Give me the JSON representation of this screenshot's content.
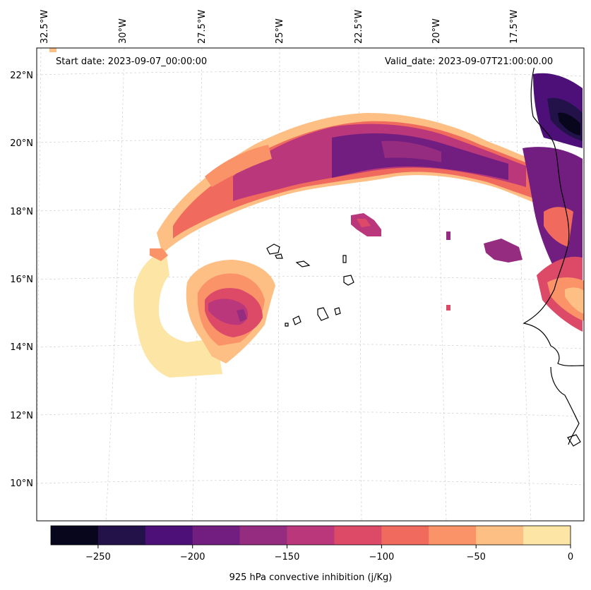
{
  "map": {
    "start_date": "Start date: 2023-09-07_00:00:00",
    "valid_date": "Valid_date: 2023-09-07T21:00:00.00",
    "top_labels": [
      "32.5°W",
      "30°W",
      "27.5°W",
      "25°W",
      "22.5°W",
      "20°W",
      "17.5°W"
    ],
    "left_labels": [
      "22°N",
      "20°N",
      "18°N",
      "16°N",
      "14°N",
      "12°N",
      "10°N"
    ]
  },
  "colorbar": {
    "label": "925 hPa convective inhibition (j/Kg)",
    "ticks": [
      "−250",
      "−200",
      "−150",
      "−100",
      "−50",
      "0"
    ],
    "levels": [
      -275,
      -250,
      -225,
      -200,
      -175,
      -150,
      -125,
      -100,
      -75,
      -50,
      -25,
      0
    ],
    "colors": [
      "#07061d",
      "#221249",
      "#4d1078",
      "#721e81",
      "#952c80",
      "#b9377a",
      "#dc4a68",
      "#f06b5d",
      "#fb9369",
      "#febf84",
      "#fde5a6"
    ]
  }
}
